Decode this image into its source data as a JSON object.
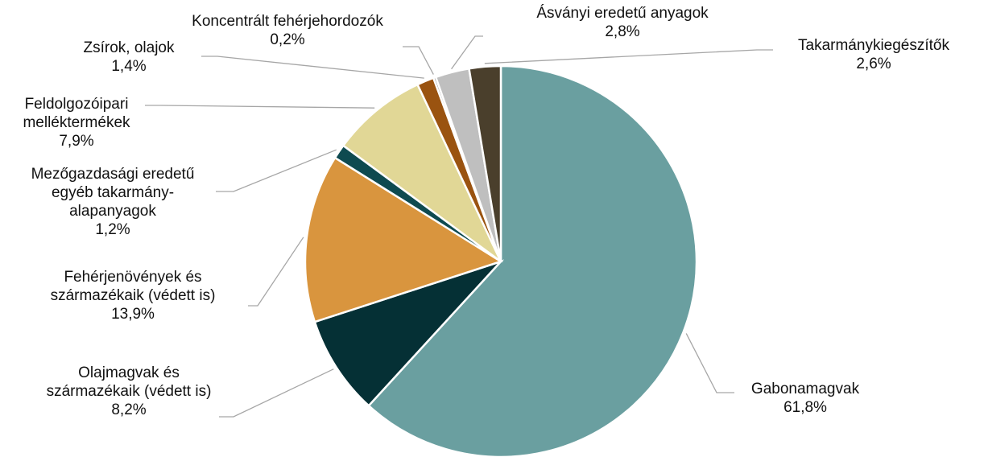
{
  "chart_data": {
    "type": "pie",
    "categories": [
      "Gabonamagvak",
      "Olajmagvak és származékaik (védett is)",
      "Fehérjenövények és származékaik (védett is)",
      "Mezőgazdasági eredetű egyéb takarmány-alapanyagok",
      "Feldolgozóipari melléktermékek",
      "Zsírok, olajok",
      "Koncentrált fehérjehordozók",
      "Ásványi eredetű anyagok",
      "Takarmánykiegészítők"
    ],
    "values": [
      61.8,
      8.2,
      13.9,
      1.2,
      7.9,
      1.4,
      0.2,
      2.8,
      2.6
    ],
    "value_labels": [
      "61,8%",
      "8,2%",
      "13,9%",
      "1,2%",
      "7,9%",
      "1,4%",
      "0,2%",
      "2,8%",
      "2,6%"
    ],
    "colors": [
      "#6a9fa0",
      "#053035",
      "#d9953e",
      "#0e4a50",
      "#e1d796",
      "#9a5310",
      "#7f7f7f",
      "#bfbfbf",
      "#4a3f2c"
    ]
  }
}
